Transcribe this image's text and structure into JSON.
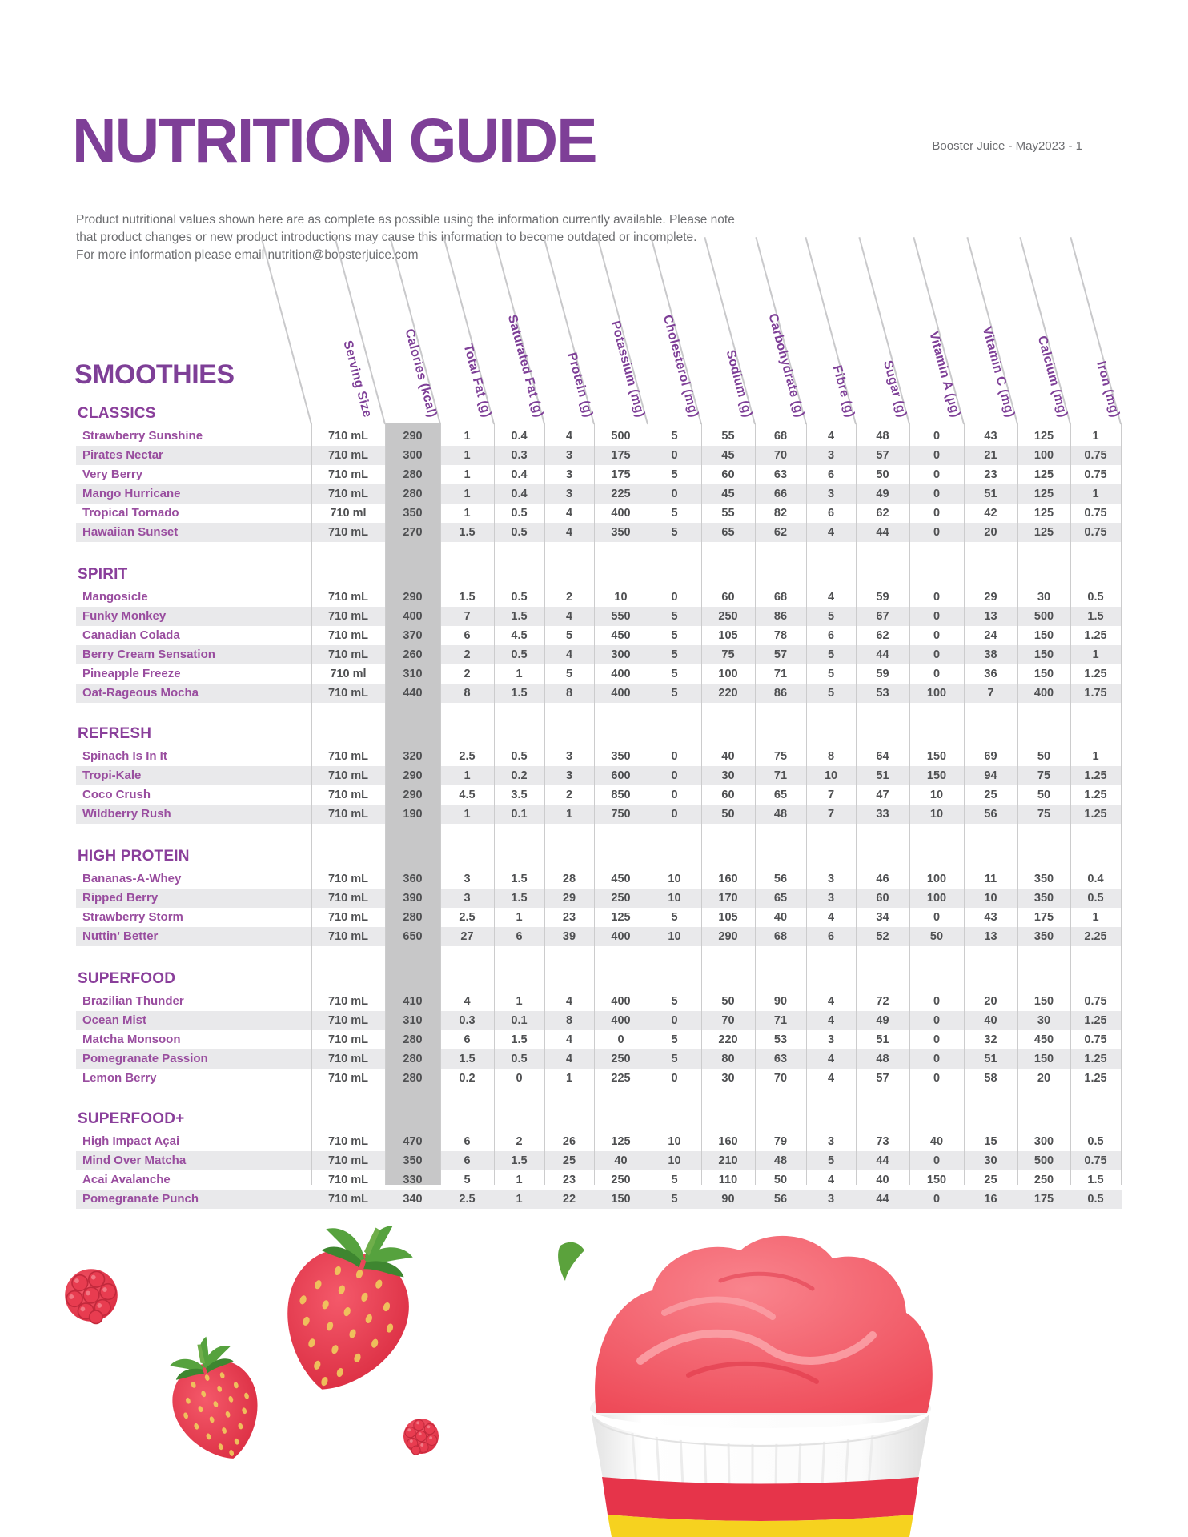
{
  "page": {
    "title": "NUTRITION GUIDE",
    "doc_info": "Booster Juice - May2023 - 1",
    "table_title": "SMOOTHIES"
  },
  "intro": {
    "line1": "Product nutritional values shown here are as complete as possible using the information currently available. Please note",
    "line2": "that product changes or new product introductions may cause this information to become outdated or incomplete.",
    "line3": "For more information please email nutrition@boosterjuice.com"
  },
  "columns": [
    "Serving Size",
    "Calories (kcal)",
    "Total Fat (g)",
    "Saturated Fat (g)",
    "Protein (g)",
    "Potassium (mg)",
    "Cholesterol (mg)",
    "Sodium (g)",
    "Carbohydrate (g)",
    "Fibre (g)",
    "Sugar (g)",
    "Vitamin A (µg)",
    "Vitamin C (mg)",
    "Calcium (mg)",
    "Iron (mg)"
  ],
  "sections": [
    {
      "name": "CLASSICS",
      "rows": [
        {
          "name": "Strawberry Sunshine",
          "values": [
            "710 mL",
            "290",
            "1",
            "0.4",
            "4",
            "500",
            "5",
            "55",
            "68",
            "4",
            "48",
            "0",
            "43",
            "125",
            "1"
          ]
        },
        {
          "name": "Pirates Nectar",
          "values": [
            "710 mL",
            "300",
            "1",
            "0.3",
            "3",
            "175",
            "0",
            "45",
            "70",
            "3",
            "57",
            "0",
            "21",
            "100",
            "0.75"
          ]
        },
        {
          "name": "Very Berry",
          "values": [
            "710 mL",
            "280",
            "1",
            "0.4",
            "3",
            "175",
            "5",
            "60",
            "63",
            "6",
            "50",
            "0",
            "23",
            "125",
            "0.75"
          ]
        },
        {
          "name": "Mango Hurricane",
          "values": [
            "710 mL",
            "280",
            "1",
            "0.4",
            "3",
            "225",
            "0",
            "45",
            "66",
            "3",
            "49",
            "0",
            "51",
            "125",
            "1"
          ]
        },
        {
          "name": "Tropical Tornado",
          "values": [
            "710 ml",
            "350",
            "1",
            "0.5",
            "4",
            "400",
            "5",
            "55",
            "82",
            "6",
            "62",
            "0",
            "42",
            "125",
            "0.75"
          ]
        },
        {
          "name": "Hawaiian Sunset",
          "values": [
            "710 mL",
            "270",
            "1.5",
            "0.5",
            "4",
            "350",
            "5",
            "65",
            "62",
            "4",
            "44",
            "0",
            "20",
            "125",
            "0.75"
          ]
        }
      ]
    },
    {
      "name": "SPIRIT",
      "rows": [
        {
          "name": "Mangosicle",
          "values": [
            "710 mL",
            "290",
            "1.5",
            "0.5",
            "2",
            "10",
            "0",
            "60",
            "68",
            "4",
            "59",
            "0",
            "29",
            "30",
            "0.5"
          ]
        },
        {
          "name": "Funky Monkey",
          "values": [
            "710 mL",
            "400",
            "7",
            "1.5",
            "4",
            "550",
            "5",
            "250",
            "86",
            "5",
            "67",
            "0",
            "13",
            "500",
            "1.5"
          ]
        },
        {
          "name": "Canadian Colada",
          "values": [
            "710 mL",
            "370",
            "6",
            "4.5",
            "5",
            "450",
            "5",
            "105",
            "78",
            "6",
            "62",
            "0",
            "24",
            "150",
            "1.25"
          ]
        },
        {
          "name": "Berry Cream Sensation",
          "values": [
            "710 mL",
            "260",
            "2",
            "0.5",
            "4",
            "300",
            "5",
            "75",
            "57",
            "5",
            "44",
            "0",
            "38",
            "150",
            "1"
          ]
        },
        {
          "name": "Pineapple Freeze",
          "values": [
            "710 ml",
            "310",
            "2",
            "1",
            "5",
            "400",
            "5",
            "100",
            "71",
            "5",
            "59",
            "0",
            "36",
            "150",
            "1.25"
          ]
        },
        {
          "name": "Oat-Rageous Mocha",
          "values": [
            "710 mL",
            "440",
            "8",
            "1.5",
            "8",
            "400",
            "5",
            "220",
            "86",
            "5",
            "53",
            "100",
            "7",
            "400",
            "1.75"
          ]
        }
      ]
    },
    {
      "name": "REFRESH",
      "rows": [
        {
          "name": "Spinach Is In It",
          "values": [
            "710 mL",
            "320",
            "2.5",
            "0.5",
            "3",
            "350",
            "0",
            "40",
            "75",
            "8",
            "64",
            "150",
            "69",
            "50",
            "1"
          ]
        },
        {
          "name": "Tropi-Kale",
          "values": [
            "710 mL",
            "290",
            "1",
            "0.2",
            "3",
            "600",
            "0",
            "30",
            "71",
            "10",
            "51",
            "150",
            "94",
            "75",
            "1.25"
          ]
        },
        {
          "name": "Coco Crush",
          "values": [
            "710 mL",
            "290",
            "4.5",
            "3.5",
            "2",
            "850",
            "0",
            "60",
            "65",
            "7",
            "47",
            "10",
            "25",
            "50",
            "1.25"
          ]
        },
        {
          "name": "Wildberry Rush",
          "values": [
            "710 mL",
            "190",
            "1",
            "0.1",
            "1",
            "750",
            "0",
            "50",
            "48",
            "7",
            "33",
            "10",
            "56",
            "75",
            "1.25"
          ]
        }
      ]
    },
    {
      "name": "HIGH PROTEIN",
      "rows": [
        {
          "name": "Bananas-A-Whey",
          "values": [
            "710 mL",
            "360",
            "3",
            "1.5",
            "28",
            "450",
            "10",
            "160",
            "56",
            "3",
            "46",
            "100",
            "11",
            "350",
            "0.4"
          ]
        },
        {
          "name": "Ripped Berry",
          "values": [
            "710 mL",
            "390",
            "3",
            "1.5",
            "29",
            "250",
            "10",
            "170",
            "65",
            "3",
            "60",
            "100",
            "10",
            "350",
            "0.5"
          ]
        },
        {
          "name": "Strawberry Storm",
          "values": [
            "710 mL",
            "280",
            "2.5",
            "1",
            "23",
            "125",
            "5",
            "105",
            "40",
            "4",
            "34",
            "0",
            "43",
            "175",
            "1"
          ]
        },
        {
          "name": "Nuttin' Better",
          "values": [
            "710 mL",
            "650",
            "27",
            "6",
            "39",
            "400",
            "10",
            "290",
            "68",
            "6",
            "52",
            "50",
            "13",
            "350",
            "2.25"
          ]
        }
      ]
    },
    {
      "name": "SUPERFOOD",
      "rows": [
        {
          "name": "Brazilian Thunder",
          "values": [
            "710 mL",
            "410",
            "4",
            "1",
            "4",
            "400",
            "5",
            "50",
            "90",
            "4",
            "72",
            "0",
            "20",
            "150",
            "0.75"
          ]
        },
        {
          "name": "Ocean Mist",
          "values": [
            "710 mL",
            "310",
            "0.3",
            "0.1",
            "8",
            "400",
            "0",
            "70",
            "71",
            "4",
            "49",
            "0",
            "40",
            "30",
            "1.25"
          ]
        },
        {
          "name": "Matcha Monsoon",
          "values": [
            "710 mL",
            "280",
            "6",
            "1.5",
            "4",
            "0",
            "5",
            "220",
            "53",
            "3",
            "51",
            "0",
            "32",
            "450",
            "0.75"
          ]
        },
        {
          "name": "Pomegranate Passion",
          "values": [
            "710 mL",
            "280",
            "1.5",
            "0.5",
            "4",
            "250",
            "5",
            "80",
            "63",
            "4",
            "48",
            "0",
            "51",
            "150",
            "1.25"
          ]
        },
        {
          "name": "Lemon Berry",
          "values": [
            "710 mL",
            "280",
            "0.2",
            "0",
            "1",
            "225",
            "0",
            "30",
            "70",
            "4",
            "57",
            "0",
            "58",
            "20",
            "1.25"
          ]
        }
      ]
    },
    {
      "name": "SUPERFOOD+",
      "rows": [
        {
          "name": "High Impact Açai",
          "values": [
            "710 mL",
            "470",
            "6",
            "2",
            "26",
            "125",
            "10",
            "160",
            "79",
            "3",
            "73",
            "40",
            "15",
            "300",
            "0.5"
          ]
        },
        {
          "name": "Mind Over Matcha",
          "values": [
            "710 mL",
            "350",
            "6",
            "1.5",
            "25",
            "40",
            "10",
            "210",
            "48",
            "5",
            "44",
            "0",
            "30",
            "500",
            "0.75"
          ]
        },
        {
          "name": "Acai Avalanche",
          "values": [
            "710 mL",
            "330",
            "5",
            "1",
            "23",
            "250",
            "5",
            "110",
            "50",
            "4",
            "40",
            "150",
            "25",
            "250",
            "1.5"
          ]
        },
        {
          "name": "Pomegranate Punch",
          "values": [
            "710 mL",
            "340",
            "2.5",
            "1",
            "22",
            "150",
            "5",
            "90",
            "56",
            "3",
            "44",
            "0",
            "16",
            "175",
            "0.5"
          ]
        }
      ]
    }
  ],
  "colors": {
    "purple": "#7e3f97",
    "section_purple": "#8a3f9b",
    "product_purple": "#994d9f",
    "value_gray": "#4f5052",
    "calories_band_gray": "#c7c7c8",
    "row_stripe_gray": "#e9e9eb",
    "cup_red": "#e6344a",
    "cup_yellow": "#f6d21f",
    "berry_red": "#e23448"
  }
}
